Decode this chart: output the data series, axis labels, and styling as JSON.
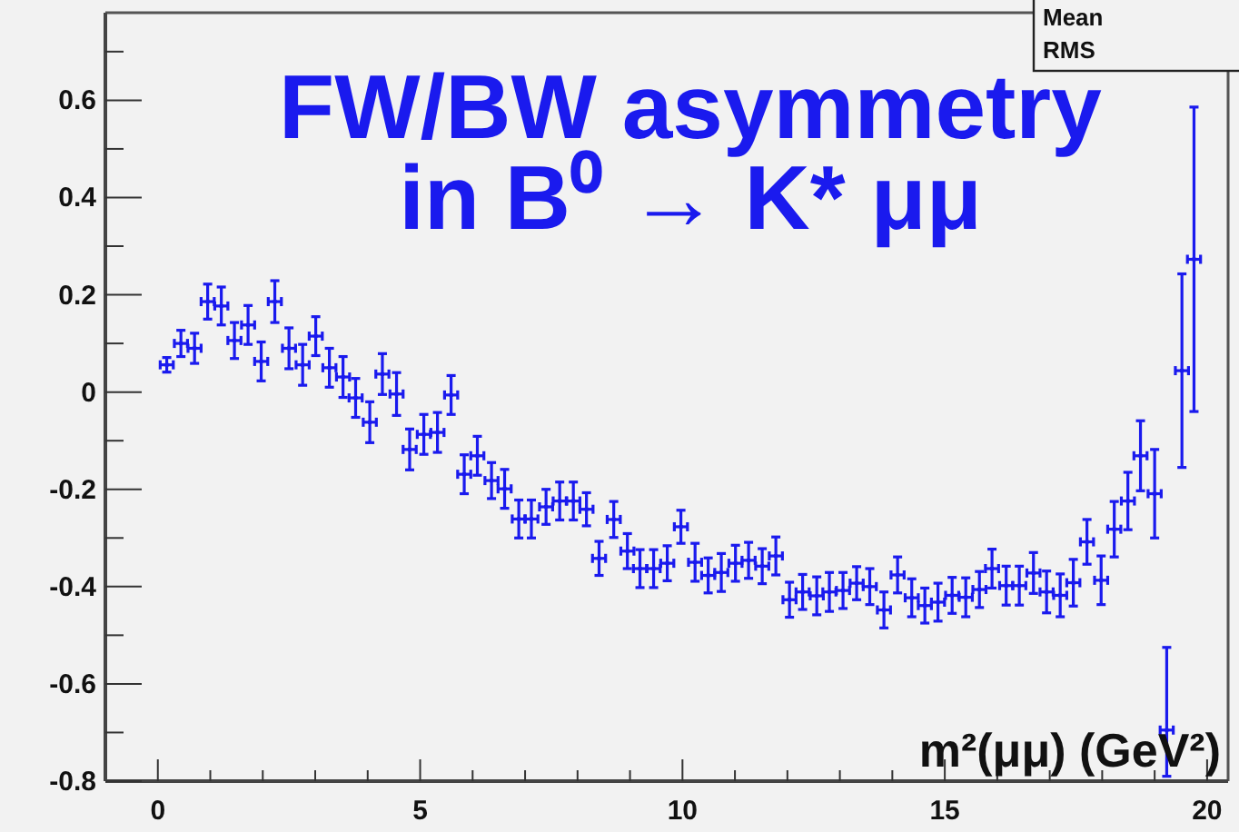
{
  "chart_data": {
    "type": "scatter",
    "title": "FW/BW asymmetry\nin B⁰ → K* μμ",
    "xlabel": "m²(μμ)  (GeV²)",
    "annotations": [
      "Mean",
      "RMS"
    ],
    "xlim": [
      -1,
      20.4
    ],
    "ylim": [
      -0.8,
      0.78
    ],
    "xticks": [
      0,
      {
        "value": 1,
        "label": null
      },
      {
        "value": 2,
        "label": null
      },
      {
        "value": 3,
        "label": null
      },
      {
        "value": 4,
        "label": null
      },
      5,
      {
        "value": 6,
        "label": null
      },
      {
        "value": 7,
        "label": null
      },
      {
        "value": 8,
        "label": null
      },
      {
        "value": 9,
        "label": null
      },
      10,
      {
        "value": 11,
        "label": null
      },
      {
        "value": 12,
        "label": null
      },
      {
        "value": 13,
        "label": null
      },
      {
        "value": 14,
        "label": null
      },
      15,
      {
        "value": 16,
        "label": null
      },
      {
        "value": 17,
        "label": null
      },
      {
        "value": 18,
        "label": null
      },
      {
        "value": 19,
        "label": null
      },
      20
    ],
    "yticks": [
      -0.8,
      {
        "value": -0.7,
        "label": null
      },
      -0.6,
      {
        "value": -0.5,
        "label": null
      },
      -0.4,
      {
        "value": -0.3,
        "label": null
      },
      -0.2,
      {
        "value": -0.1,
        "label": null
      },
      0,
      {
        "value": 0.1,
        "label": null
      },
      0.2,
      {
        "value": 0.3,
        "label": null
      },
      0.4,
      {
        "value": 0.5,
        "label": null
      },
      0.6,
      {
        "value": 0.7,
        "label": null
      }
    ],
    "grid": false,
    "series": [
      {
        "color": "#1a1aee",
        "x": [
          0.17,
          0.44,
          0.7,
          0.95,
          1.21,
          1.46,
          1.72,
          1.97,
          2.23,
          2.5,
          2.76,
          3.01,
          3.27,
          3.53,
          3.77,
          4.04,
          4.28,
          4.55,
          4.8,
          5.07,
          5.33,
          5.59,
          5.84,
          6.09,
          6.36,
          6.61,
          6.88,
          7.12,
          7.4,
          7.66,
          7.92,
          8.17,
          8.41,
          8.69,
          8.95,
          9.19,
          9.45,
          9.71,
          9.97,
          10.24,
          10.49,
          10.74,
          11.01,
          11.26,
          11.52,
          11.78,
          12.04,
          12.29,
          12.56,
          12.8,
          13.06,
          13.32,
          13.57,
          13.84,
          14.1,
          14.37,
          14.62,
          14.87,
          15.14,
          15.4,
          15.66,
          15.9,
          16.17,
          16.42,
          16.69,
          16.94,
          17.2,
          17.45,
          17.71,
          17.98,
          18.23,
          18.49,
          18.73,
          19.0,
          19.23,
          19.52,
          19.75
        ],
        "values": [
          0.056,
          0.1,
          0.09,
          0.186,
          0.177,
          0.106,
          0.138,
          0.063,
          0.186,
          0.09,
          0.056,
          0.115,
          0.05,
          0.031,
          -0.012,
          -0.062,
          0.037,
          -0.004,
          -0.118,
          -0.087,
          -0.083,
          -0.006,
          -0.169,
          -0.131,
          -0.182,
          -0.199,
          -0.261,
          -0.261,
          -0.236,
          -0.224,
          -0.224,
          -0.241,
          -0.342,
          -0.262,
          -0.327,
          -0.363,
          -0.363,
          -0.352,
          -0.277,
          -0.35,
          -0.377,
          -0.371,
          -0.352,
          -0.346,
          -0.358,
          -0.337,
          -0.427,
          -0.411,
          -0.419,
          -0.411,
          -0.408,
          -0.393,
          -0.4,
          -0.448,
          -0.376,
          -0.423,
          -0.439,
          -0.432,
          -0.418,
          -0.422,
          -0.406,
          -0.363,
          -0.398,
          -0.398,
          -0.372,
          -0.411,
          -0.418,
          -0.392,
          -0.308,
          -0.387,
          -0.282,
          -0.224,
          -0.131,
          -0.209,
          -0.695,
          0.044,
          0.273
        ],
        "errors": [
          0.015,
          0.027,
          0.031,
          0.036,
          0.039,
          0.037,
          0.04,
          0.04,
          0.043,
          0.042,
          0.042,
          0.04,
          0.04,
          0.042,
          0.04,
          0.042,
          0.042,
          0.044,
          0.042,
          0.041,
          0.041,
          0.04,
          0.04,
          0.04,
          0.037,
          0.04,
          0.039,
          0.039,
          0.036,
          0.039,
          0.039,
          0.034,
          0.035,
          0.037,
          0.036,
          0.039,
          0.039,
          0.036,
          0.034,
          0.039,
          0.036,
          0.039,
          0.037,
          0.037,
          0.036,
          0.039,
          0.036,
          0.036,
          0.039,
          0.04,
          0.037,
          0.034,
          0.037,
          0.037,
          0.037,
          0.039,
          0.036,
          0.039,
          0.037,
          0.04,
          0.037,
          0.04,
          0.04,
          0.04,
          0.042,
          0.043,
          0.044,
          0.048,
          0.046,
          0.05,
          0.057,
          0.059,
          0.072,
          0.091,
          [
            -0.79,
            -0.525
          ],
          0.199,
          0.313
        ],
        "xerrors": [
          0.125,
          0.125,
          0.125,
          0.125,
          0.125,
          0.125,
          0.125,
          0.125,
          0.125,
          0.125,
          0.125,
          0.125,
          0.125,
          0.125,
          0.125,
          0.125,
          0.125,
          0.125,
          0.125,
          0.125,
          0.125,
          0.125,
          0.125,
          0.125,
          0.125,
          0.125,
          0.125,
          0.125,
          0.125,
          0.125,
          0.125,
          0.125,
          0.125,
          0.125,
          0.125,
          0.125,
          0.125,
          0.125,
          0.125,
          0.125,
          0.125,
          0.125,
          0.125,
          0.125,
          0.125,
          0.125,
          0.125,
          0.125,
          0.125,
          0.125,
          0.125,
          0.125,
          0.125,
          0.125,
          0.125,
          0.125,
          0.125,
          0.125,
          0.125,
          0.125,
          0.125,
          0.125,
          0.125,
          0.125,
          0.125,
          0.125,
          0.125,
          0.125,
          0.125,
          0.125,
          0.125,
          0.125,
          0.125,
          0.125,
          0.125,
          0.125,
          0.125
        ]
      }
    ]
  }
}
